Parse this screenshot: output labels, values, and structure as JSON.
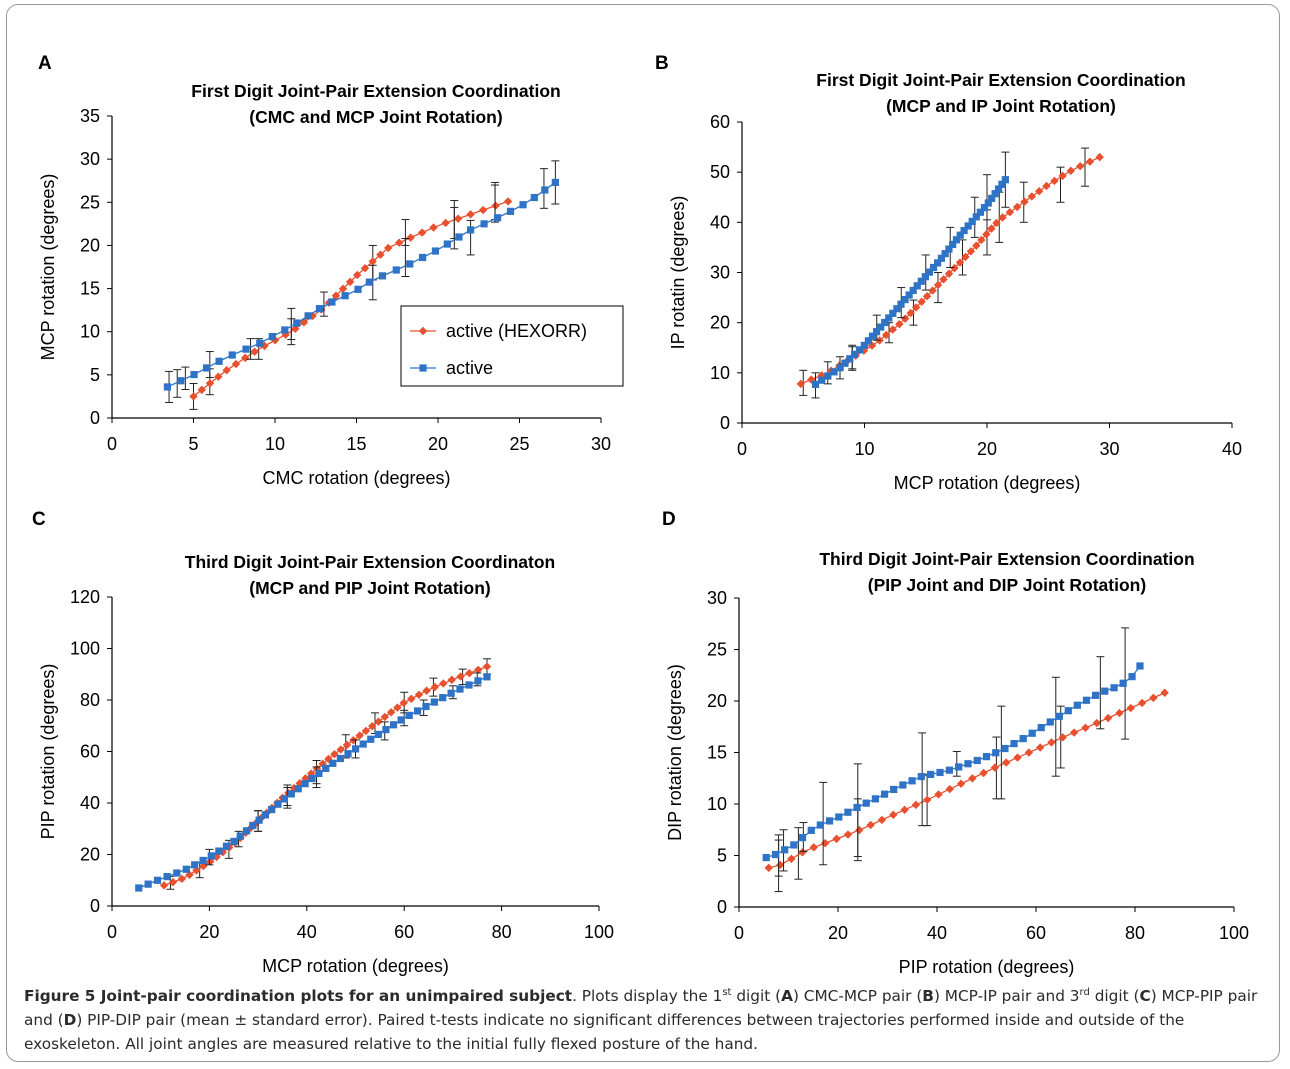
{
  "colors": {
    "hexorr": "#e8502f",
    "active": "#2e73c5",
    "axis": "#000000",
    "frame": "#9a9a9a"
  },
  "caption": {
    "title": "Figure 5 Joint-pair coordination plots for an unimpaired subject",
    "t1": ". Plots display the 1",
    "sup1": "st",
    "t2": " digit (",
    "A": "A",
    "t3": ") CMC-MCP pair (",
    "B": "B",
    "t4": ") MCP-IP pair and 3",
    "sup2": "rd",
    "t5": " digit (",
    "C": "C",
    "t6": ") MCP-PIP pair and (",
    "D": "D",
    "t7": ") PIP-DIP pair (mean ± standard error). Paired t-tests indicate no significant differences between trajectories performed inside and outside of the exoskeleton. All joint angles are measured relative to the initial fully flexed posture of the hand."
  },
  "chart_data": [
    {
      "panel": "A",
      "type": "line",
      "title": "First Digit Joint-Pair Extension Coordination\n(CMC and MCP Joint Rotation)",
      "xlabel": "CMC rotation (degrees)",
      "ylabel": "MCP rotation (degrees)",
      "xlim": [
        0,
        30
      ],
      "ylim": [
        0,
        35
      ],
      "xticks": [
        "0",
        "5",
        "10",
        "15",
        "20",
        "25",
        "30"
      ],
      "yticks": [
        "0",
        "5",
        "10",
        "15",
        "20",
        "25",
        "30",
        "35"
      ],
      "grid": false,
      "legend": {
        "placement": "center-right",
        "entries": [
          "active (HEXORR)",
          "active"
        ]
      },
      "series": [
        {
          "name": "active (HEXORR)",
          "color": "#e8502f",
          "marker": "diamond",
          "n": 34,
          "curve": [
            [
              5,
              2.5
            ],
            [
              7,
              5.5
            ],
            [
              9,
              8
            ],
            [
              11,
              10
            ],
            [
              13,
              12.8
            ],
            [
              15,
              16.5
            ],
            [
              17,
              19.8
            ],
            [
              20,
              22.3
            ],
            [
              22,
              23.6
            ],
            [
              24.3,
              25.1
            ]
          ],
          "err": [
            [
              5,
              2.5,
              1.5
            ],
            [
              6,
              4.2,
              1.5
            ],
            [
              9,
              8,
              1.2
            ],
            [
              11,
              10,
              1.5
            ],
            [
              16,
              18,
              2
            ],
            [
              18,
              21.5,
              1.5
            ],
            [
              21,
              23,
              2.2
            ],
            [
              23.5,
              25,
              2
            ]
          ]
        },
        {
          "name": "active",
          "color": "#2e73c5",
          "marker": "square",
          "n": 32,
          "curve": [
            [
              3.4,
              3.6
            ],
            [
              5,
              5
            ],
            [
              7,
              7
            ],
            [
              9,
              8.6
            ],
            [
              11,
              10.6
            ],
            [
              13,
              13
            ],
            [
              15,
              14.8
            ],
            [
              16,
              16
            ],
            [
              18,
              17.6
            ],
            [
              20,
              19.5
            ],
            [
              22,
              21.8
            ],
            [
              24,
              23.5
            ],
            [
              25.5,
              25
            ],
            [
              27.2,
              27.3
            ]
          ],
          "err": [
            [
              3.5,
              3.6,
              1.8
            ],
            [
              4,
              4,
              1.6
            ],
            [
              4.5,
              4.6,
              1.3
            ],
            [
              6,
              6.2,
              1.5
            ],
            [
              8.5,
              8,
              1.2
            ],
            [
              11,
              10.9,
              1.8
            ],
            [
              13,
              13.2,
              1.4
            ],
            [
              16,
              15.7,
              2
            ],
            [
              18,
              18.6,
              2.2
            ],
            [
              21,
              22,
              2.4
            ],
            [
              22,
              20.9,
              2
            ],
            [
              23.5,
              25,
              2.3
            ],
            [
              26.5,
              26.6,
              2.3
            ],
            [
              27.2,
              27.3,
              2.5
            ]
          ]
        }
      ]
    },
    {
      "panel": "B",
      "type": "line",
      "title": "First Digit Joint-Pair Extension  Coordination\n(MCP and IP Joint Rotation)",
      "xlabel": "MCP rotation (degrees)",
      "ylabel": "IP rotatin (degrees)",
      "xlim": [
        0,
        40
      ],
      "ylim": [
        0,
        60
      ],
      "xticks": [
        "0",
        "10",
        "20",
        "30",
        "40"
      ],
      "yticks": [
        "0",
        "10",
        "20",
        "30",
        "40",
        "50",
        "60"
      ],
      "grid": false,
      "series": [
        {
          "name": "active (HEXORR)",
          "color": "#e8502f",
          "marker": "diamond",
          "n": 44,
          "curve": [
            [
              4.8,
              7.8
            ],
            [
              7,
              10
            ],
            [
              9,
              13
            ],
            [
              11,
              16
            ],
            [
              13,
              20
            ],
            [
              15,
              25
            ],
            [
              17,
              30
            ],
            [
              19,
              35
            ],
            [
              21,
              40.5
            ],
            [
              23,
              44
            ],
            [
              25,
              47.5
            ],
            [
              27,
              50.5
            ],
            [
              29.2,
              53
            ]
          ],
          "err": [
            [
              5,
              8,
              2.5
            ],
            [
              7,
              10,
              2.2
            ],
            [
              9,
              13,
              2.2
            ],
            [
              12,
              18,
              2
            ],
            [
              14,
              22,
              2.5
            ],
            [
              16,
              27,
              3
            ],
            [
              18,
              33,
              3.5
            ],
            [
              20,
              38,
              4.5
            ],
            [
              21,
              41,
              5
            ],
            [
              23,
              44,
              4
            ],
            [
              26,
              47.5,
              3.5
            ],
            [
              28,
              51,
              3.8
            ]
          ]
        },
        {
          "name": "active",
          "color": "#2e73c5",
          "marker": "square",
          "n": 46,
          "curve": [
            [
              6,
              7.7
            ],
            [
              8,
              11
            ],
            [
              10,
              15.5
            ],
            [
              12,
              21
            ],
            [
              14,
              26.5
            ],
            [
              16,
              32
            ],
            [
              18,
              38
            ],
            [
              20,
              43.5
            ],
            [
              21.5,
              48.5
            ]
          ],
          "err": [
            [
              6,
              7.5,
              2.5
            ],
            [
              8,
              11,
              2.2
            ],
            [
              9,
              13,
              2.5
            ],
            [
              11,
              19,
              2.5
            ],
            [
              13,
              24,
              3
            ],
            [
              15,
              30,
              3.5
            ],
            [
              17,
              35,
              4
            ],
            [
              19,
              41,
              4
            ],
            [
              20,
              45,
              4.5
            ],
            [
              21.5,
              48.5,
              5.5
            ]
          ]
        }
      ]
    },
    {
      "panel": "C",
      "type": "line",
      "title": "Third Digit Joint-Pair Extension Coordinaton\n(MCP and PIP Joint Rotation)",
      "xlabel": "MCP rotation (degrees)",
      "ylabel": "PIP rotation (degrees)",
      "xlim": [
        0,
        100
      ],
      "ylim": [
        0,
        120
      ],
      "xticks": [
        "0",
        "20",
        "40",
        "60",
        "80",
        "100"
      ],
      "yticks": [
        "0",
        "20",
        "40",
        "60",
        "80",
        "100",
        "120"
      ],
      "grid": false,
      "series": [
        {
          "name": "active (HEXORR)",
          "color": "#e8502f",
          "marker": "diamond",
          "n": 50,
          "curve": [
            [
              10.7,
              8
            ],
            [
              15,
              11
            ],
            [
              20,
              17
            ],
            [
              25,
              24
            ],
            [
              30,
              33
            ],
            [
              35,
              42
            ],
            [
              40,
              50
            ],
            [
              45,
              58
            ],
            [
              50,
              65
            ],
            [
              55,
              72
            ],
            [
              60,
              79
            ],
            [
              65,
              84
            ],
            [
              70,
              88
            ],
            [
              77,
              93
            ]
          ],
          "err": [
            [
              12,
              9,
              2.5
            ],
            [
              18,
              14,
              3
            ],
            [
              24,
              22,
              3.5
            ],
            [
              30,
              33,
              4
            ],
            [
              36,
              43,
              4
            ],
            [
              42,
              52,
              4.5
            ],
            [
              48,
              62,
              4.5
            ],
            [
              54,
              71,
              4
            ],
            [
              60,
              79,
              4
            ],
            [
              66,
              85,
              3.5
            ],
            [
              72,
              89,
              3
            ],
            [
              77,
              93,
              3
            ]
          ]
        },
        {
          "name": "active",
          "color": "#2e73c5",
          "marker": "square",
          "n": 46,
          "curve": [
            [
              5.5,
              7
            ],
            [
              10,
              10.5
            ],
            [
              15,
              14
            ],
            [
              20,
              19
            ],
            [
              25,
              25
            ],
            [
              30,
              33
            ],
            [
              35,
              41
            ],
            [
              40,
              48
            ],
            [
              45,
              55
            ],
            [
              50,
              61
            ],
            [
              55,
              67
            ],
            [
              60,
              73
            ],
            [
              65,
              78
            ],
            [
              70,
              83
            ],
            [
              77,
              89
            ]
          ],
          "err": [
            [
              20,
              19,
              3
            ],
            [
              26,
              26,
              3
            ],
            [
              30,
              33,
              4
            ],
            [
              36,
              42,
              4
            ],
            [
              42,
              50,
              4
            ],
            [
              50,
              61,
              3.5
            ],
            [
              56,
              68,
              3.5
            ],
            [
              60,
              73,
              3
            ],
            [
              64,
              77,
              3
            ],
            [
              70,
              83,
              2.5
            ],
            [
              75,
              88,
              2.5
            ]
          ]
        }
      ]
    },
    {
      "panel": "D",
      "type": "line",
      "title": "Third Digit Joint-Pair Extension Coordination\n(PIP Joint and DIP Joint Rotation)",
      "xlabel": "PIP rotation (degrees)",
      "ylabel": "DIP rotation (degrees)",
      "xlim": [
        0,
        100
      ],
      "ylim": [
        0,
        30
      ],
      "xticks": [
        "0",
        "20",
        "40",
        "60",
        "80",
        "100"
      ],
      "yticks": [
        "0",
        "5",
        "10",
        "15",
        "20",
        "25",
        "30"
      ],
      "grid": false,
      "series": [
        {
          "name": "active (HEXORR)",
          "color": "#e8502f",
          "marker": "diamond",
          "n": 36,
          "curve": [
            [
              6,
              3.8
            ],
            [
              8,
              4
            ],
            [
              10,
              4.5
            ],
            [
              12,
              5.1
            ],
            [
              14,
              5.6
            ],
            [
              18,
              6.3
            ],
            [
              24,
              7.4
            ],
            [
              30,
              8.7
            ],
            [
              38,
              10.4
            ],
            [
              45,
              12
            ],
            [
              52,
              13.6
            ],
            [
              60,
              15.3
            ],
            [
              66,
              16.6
            ],
            [
              72,
              17.8
            ],
            [
              80,
              19.5
            ],
            [
              86,
              20.8
            ]
          ],
          "err": [
            [
              8,
              4,
              2.5
            ],
            [
              12,
              5.2,
              2.5
            ],
            [
              24,
              7.5,
              3
            ],
            [
              38,
              10.4,
              2.5
            ],
            [
              52,
              13.5,
              3
            ],
            [
              65,
              16.5,
              3
            ]
          ]
        },
        {
          "name": "active",
          "color": "#2e73c5",
          "marker": "square",
          "n": 42,
          "curve": [
            [
              5.5,
              4.8
            ],
            [
              7,
              5
            ],
            [
              9,
              5.5
            ],
            [
              11,
              6
            ],
            [
              13,
              6.8
            ],
            [
              15,
              7.6
            ],
            [
              17,
              8.1
            ],
            [
              20,
              8.7
            ],
            [
              24,
              9.7
            ],
            [
              28,
              10.6
            ],
            [
              32,
              11.6
            ],
            [
              37,
              12.7
            ],
            [
              42,
              13.2
            ],
            [
              48,
              14.2
            ],
            [
              53,
              15.2
            ],
            [
              58,
              16.5
            ],
            [
              63,
              18
            ],
            [
              68,
              19.5
            ],
            [
              73,
              20.8
            ],
            [
              77,
              21.5
            ],
            [
              79.5,
              22.4
            ],
            [
              81,
              23.4
            ]
          ],
          "err": [
            [
              8,
              5,
              2
            ],
            [
              9,
              5.5,
              2
            ],
            [
              13,
              6.8,
              1.4
            ],
            [
              17,
              8.1,
              4
            ],
            [
              24,
              9.4,
              4.5
            ],
            [
              37,
              12.4,
              4.5
            ],
            [
              44,
              13.9,
              1.2
            ],
            [
              53,
              15,
              4.5
            ],
            [
              64,
              17.5,
              4.8
            ],
            [
              73,
              20.8,
              3.5
            ],
            [
              78,
              21.7,
              5.4
            ]
          ]
        }
      ]
    }
  ],
  "panel_labels": [
    "A",
    "B",
    "C",
    "D"
  ]
}
